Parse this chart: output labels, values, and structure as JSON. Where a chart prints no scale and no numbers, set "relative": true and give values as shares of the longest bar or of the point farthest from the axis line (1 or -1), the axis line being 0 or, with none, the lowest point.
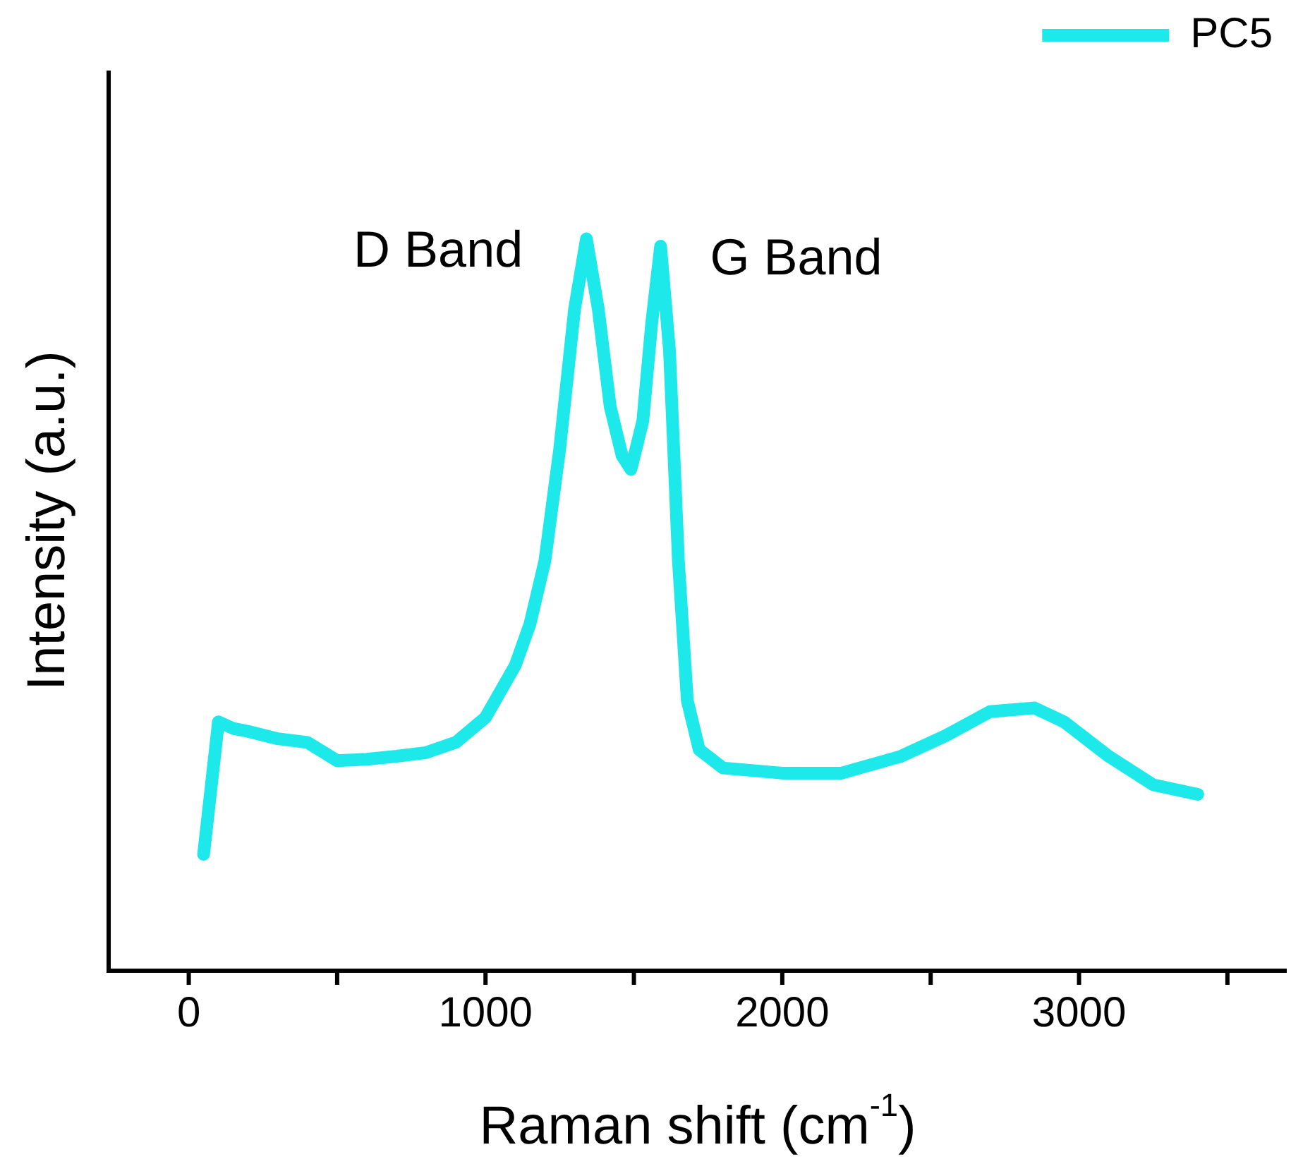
{
  "chart_data": {
    "type": "line",
    "xlabel": "Raman shift (cm$^{-1}$)",
    "ylabel": "Intensity (a.u.)",
    "relative": true,
    "xlim": [
      -270,
      3700
    ],
    "xticks": [
      0,
      {
        "value": 500,
        "label": null
      },
      1000,
      {
        "value": 1500,
        "label": null
      },
      2000,
      {
        "value": 2500,
        "label": null
      },
      3000,
      {
        "value": 3500,
        "label": null
      }
    ],
    "series": [
      {
        "name": "PC5",
        "color": "#1de9ea",
        "x": [
          50,
          100,
          150,
          200,
          300,
          400,
          500,
          600,
          700,
          800,
          900,
          1000,
          1100,
          1150,
          1200,
          1250,
          1300,
          1340,
          1380,
          1420,
          1460,
          1490,
          1530,
          1560,
          1590,
          1620,
          1650,
          1680,
          1720,
          1800,
          2000,
          2200,
          2400,
          2550,
          2700,
          2850,
          2950,
          3100,
          3250,
          3400
        ],
        "values": [
          0.159,
          0.34,
          0.331,
          0.327,
          0.317,
          0.312,
          0.287,
          0.289,
          0.293,
          0.298,
          0.312,
          0.346,
          0.417,
          0.474,
          0.56,
          0.713,
          0.904,
          1.0,
          0.904,
          0.771,
          0.704,
          0.685,
          0.751,
          0.885,
          0.99,
          0.847,
          0.56,
          0.369,
          0.302,
          0.277,
          0.27,
          0.27,
          0.293,
          0.321,
          0.354,
          0.359,
          0.34,
          0.293,
          0.254,
          0.241
        ]
      }
    ],
    "annotations": [
      {
        "text": "D Band",
        "x": 1340,
        "y": 1.0
      },
      {
        "text": "G Band",
        "x": 1590,
        "y": 0.99
      }
    ],
    "legend": "top right",
    "grid": false,
    "marker": "none",
    "line_style": "solid"
  }
}
